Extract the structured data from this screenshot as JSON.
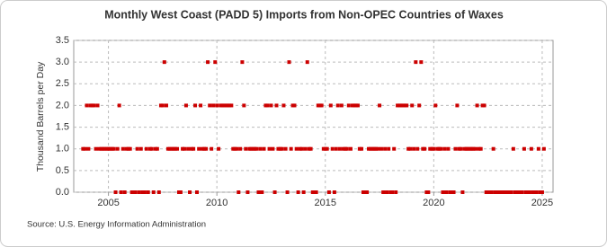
{
  "chart_data": {
    "type": "scatter",
    "title": "Monthly West Coast (PADD 5) Imports from Non-OPEC Countries of Waxes",
    "y_label": "Thousand Barrels per Day",
    "source": "Source: U.S. Energy Information Administration",
    "color": "#cc0000",
    "grid": true,
    "xlim": [
      2003.4,
      2025.5
    ],
    "xticks": [
      2005,
      2010,
      2015,
      2020,
      2025
    ],
    "ylim": [
      0,
      3.5
    ],
    "yticks": [
      {
        "value": 0,
        "label": "0.0"
      },
      0.5,
      {
        "value": 1,
        "label": "1.0"
      },
      1.5,
      {
        "value": 2,
        "label": "2.0"
      },
      2.5,
      {
        "value": 3,
        "label": "3.0"
      },
      3.5
    ],
    "x": [
      2003.83,
      2003.92,
      2004.0,
      2004.08,
      2004.17,
      2004.25,
      2004.33,
      2004.42,
      2004.5,
      2004.58,
      2004.67,
      2004.75,
      2004.83,
      2004.92,
      2005.0,
      2005.08,
      2005.17,
      2005.25,
      2005.33,
      2005.42,
      2005.5,
      2005.58,
      2005.67,
      2005.75,
      2005.83,
      2005.92,
      2006.0,
      2006.08,
      2006.17,
      2006.25,
      2006.33,
      2006.42,
      2006.5,
      2006.58,
      2006.67,
      2006.75,
      2006.83,
      2006.92,
      2007.0,
      2007.08,
      2007.17,
      2007.25,
      2007.33,
      2007.42,
      2007.5,
      2007.58,
      2007.67,
      2007.75,
      2007.83,
      2007.92,
      2008.0,
      2008.08,
      2008.17,
      2008.25,
      2008.33,
      2008.42,
      2008.5,
      2008.58,
      2008.67,
      2008.75,
      2008.83,
      2008.92,
      2009.0,
      2009.08,
      2009.17,
      2009.25,
      2009.33,
      2009.42,
      2009.5,
      2009.58,
      2009.67,
      2009.75,
      2009.83,
      2009.92,
      2010.0,
      2010.08,
      2010.17,
      2010.25,
      2010.33,
      2010.42,
      2010.5,
      2010.58,
      2010.67,
      2010.75,
      2010.83,
      2010.92,
      2011.0,
      2011.08,
      2011.17,
      2011.25,
      2011.33,
      2011.42,
      2011.5,
      2011.58,
      2011.67,
      2011.75,
      2011.83,
      2011.92,
      2012.0,
      2012.08,
      2012.17,
      2012.25,
      2012.33,
      2012.42,
      2012.5,
      2012.58,
      2012.67,
      2012.75,
      2012.83,
      2012.92,
      2013.0,
      2013.08,
      2013.17,
      2013.25,
      2013.33,
      2013.42,
      2013.5,
      2013.58,
      2013.67,
      2013.75,
      2013.83,
      2013.92,
      2014.0,
      2014.08,
      2014.17,
      2014.25,
      2014.33,
      2014.42,
      2014.5,
      2014.58,
      2014.67,
      2014.75,
      2014.83,
      2014.92,
      2015.0,
      2015.08,
      2015.17,
      2015.25,
      2015.33,
      2015.42,
      2015.5,
      2015.58,
      2015.67,
      2015.75,
      2015.83,
      2015.92,
      2016.0,
      2016.08,
      2016.17,
      2016.25,
      2016.33,
      2016.42,
      2016.5,
      2016.58,
      2016.67,
      2016.75,
      2016.83,
      2016.92,
      2017.0,
      2017.08,
      2017.17,
      2017.25,
      2017.33,
      2017.42,
      2017.5,
      2017.58,
      2017.67,
      2017.75,
      2017.83,
      2017.92,
      2018.0,
      2018.08,
      2018.17,
      2018.25,
      2018.33,
      2018.42,
      2018.5,
      2018.58,
      2018.67,
      2018.75,
      2018.83,
      2018.92,
      2019.0,
      2019.08,
      2019.17,
      2019.25,
      2019.33,
      2019.42,
      2019.5,
      2019.58,
      2019.67,
      2019.75,
      2019.83,
      2019.92,
      2020.0,
      2020.08,
      2020.17,
      2020.25,
      2020.33,
      2020.42,
      2020.5,
      2020.58,
      2020.67,
      2020.75,
      2020.83,
      2020.92,
      2021.0,
      2021.08,
      2021.17,
      2021.25,
      2021.33,
      2021.42,
      2021.5,
      2021.58,
      2021.67,
      2021.75,
      2021.83,
      2021.92,
      2022.0,
      2022.08,
      2022.17,
      2022.25,
      2022.33,
      2022.42,
      2022.5,
      2022.58,
      2022.67,
      2022.75,
      2022.83,
      2022.92,
      2023.0,
      2023.08,
      2023.17,
      2023.25,
      2023.33,
      2023.42,
      2023.5,
      2023.58,
      2023.67,
      2023.75,
      2023.83,
      2023.92,
      2024.0,
      2024.08,
      2024.17,
      2024.25,
      2024.33,
      2024.42,
      2024.5,
      2024.58,
      2024.67,
      2024.75,
      2024.83,
      2024.92,
      2025.0,
      2025.08
    ],
    "values": [
      1,
      1,
      2,
      1,
      2,
      2,
      2,
      1,
      2,
      1,
      1,
      1,
      1,
      1,
      1,
      1,
      1,
      1,
      0,
      1,
      2,
      0,
      1,
      0,
      1,
      1,
      1,
      0,
      0,
      0,
      1,
      0,
      1,
      0,
      0,
      1,
      0,
      1,
      1,
      0,
      1,
      1,
      0,
      2,
      2,
      3,
      2,
      1,
      1,
      1,
      1,
      1,
      1,
      0,
      0,
      1,
      1,
      2,
      1,
      0,
      1,
      1,
      2,
      0,
      1,
      2,
      1,
      1,
      1,
      3,
      2,
      1,
      2,
      3,
      2,
      1,
      2,
      2,
      2,
      2,
      2,
      2,
      2,
      1,
      1,
      1,
      0,
      1,
      3,
      2,
      1,
      0,
      1,
      1,
      1,
      1,
      1,
      0,
      1,
      0,
      1,
      2,
      2,
      1,
      2,
      1,
      0,
      2,
      1,
      1,
      1,
      2,
      1,
      0,
      3,
      1,
      2,
      2,
      1,
      0,
      1,
      1,
      0,
      1,
      3,
      1,
      1,
      0,
      0,
      0,
      2,
      2,
      2,
      1,
      1,
      1,
      0,
      2,
      1,
      0,
      1,
      2,
      1,
      2,
      1,
      1,
      1,
      2,
      1,
      2,
      2,
      2,
      2,
      1,
      1,
      0,
      0,
      0,
      1,
      1,
      1,
      1,
      1,
      1,
      2,
      1,
      0,
      1,
      0,
      1,
      0,
      0,
      1,
      0,
      2,
      2,
      2,
      2,
      2,
      2,
      1,
      1,
      2,
      1,
      3,
      1,
      2,
      3,
      1,
      1,
      0,
      0,
      1,
      1,
      1,
      2,
      1,
      1,
      1,
      0,
      1,
      0,
      1,
      0,
      0,
      0,
      1,
      2,
      1,
      1,
      0,
      1,
      1,
      1,
      1,
      1,
      1,
      1,
      2,
      1,
      1,
      2,
      2,
      0,
      0,
      0,
      0,
      1,
      0,
      0,
      0,
      0,
      0,
      0,
      0,
      0,
      0,
      0,
      1,
      0,
      0,
      0,
      0,
      0,
      1,
      0,
      0,
      0,
      1,
      0,
      0,
      0,
      1,
      0,
      0,
      1
    ]
  }
}
